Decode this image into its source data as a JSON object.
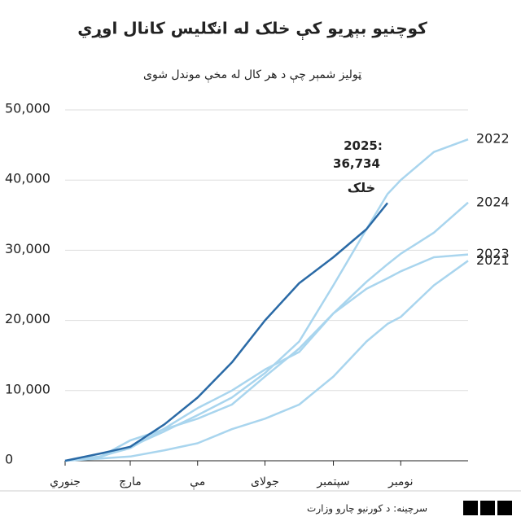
{
  "chart_data": {
    "type": "line",
    "title": "کوچنیو بېړیو کې خلک له انګلیس کانال اوړي",
    "subtitle": "ټولیز شمېر چې د هر کال له مخې موندل شوی",
    "x": [
      1,
      32,
      60,
      91,
      121,
      152,
      182,
      213,
      244,
      274,
      293,
      305,
      335,
      366
    ],
    "xlim": [
      1,
      366
    ],
    "xticks": [
      {
        "value": 1,
        "label": "جنوري"
      },
      {
        "value": 60,
        "label": "مارچ"
      },
      {
        "value": 121,
        "label": "مې"
      },
      {
        "value": 182,
        "label": "جولای"
      },
      {
        "value": 244,
        "label": "سپتمبر"
      },
      {
        "value": 305,
        "label": "نومبر"
      }
    ],
    "ylim": [
      0,
      50000
    ],
    "yticks": [
      0,
      {
        "value": 10000,
        "label": "10,000"
      },
      {
        "value": 20000,
        "label": "20,000"
      },
      {
        "value": 30000,
        "label": "30,000"
      },
      {
        "value": 40000,
        "label": "40,000"
      },
      {
        "value": 50000,
        "label": "50,000"
      }
    ],
    "grid": true,
    "series": [
      {
        "name": "2022",
        "color": "#a9d5ee",
        "values": [
          0,
          500,
          2000,
          4200,
          6500,
          9000,
          12500,
          17000,
          25000,
          33000,
          38000,
          40000,
          44000,
          45800
        ]
      },
      {
        "name": "2024",
        "color": "#a9d5ee",
        "values": [
          0,
          600,
          1800,
          4600,
          7500,
          10000,
          13000,
          15500,
          21000,
          25500,
          28000,
          29500,
          32500,
          36800
        ]
      },
      {
        "name": "2023",
        "color": "#a9d5ee",
        "values": [
          0,
          500,
          2900,
          4500,
          6000,
          8000,
          12000,
          16000,
          21000,
          24500,
          26000,
          27000,
          29000,
          29400
        ]
      },
      {
        "name": "2021",
        "color": "#a9d5ee",
        "values": [
          0,
          300,
          600,
          1500,
          2500,
          4500,
          6000,
          8000,
          12000,
          17000,
          19500,
          20500,
          25000,
          28500
        ]
      },
      {
        "name": "2025:",
        "color": "#2a6aa6",
        "values": [
          0,
          1000,
          2000,
          5200,
          9000,
          14000,
          20000,
          25300,
          29000,
          33000,
          36734,
          null,
          null,
          null
        ]
      }
    ],
    "annotation": {
      "value": 36734,
      "label": "36,734",
      "note": "خلک",
      "note_color": "#3aa0b3"
    },
    "source": "سرچینه: د کورنیو چارو وزارت",
    "logo": "BBC"
  }
}
